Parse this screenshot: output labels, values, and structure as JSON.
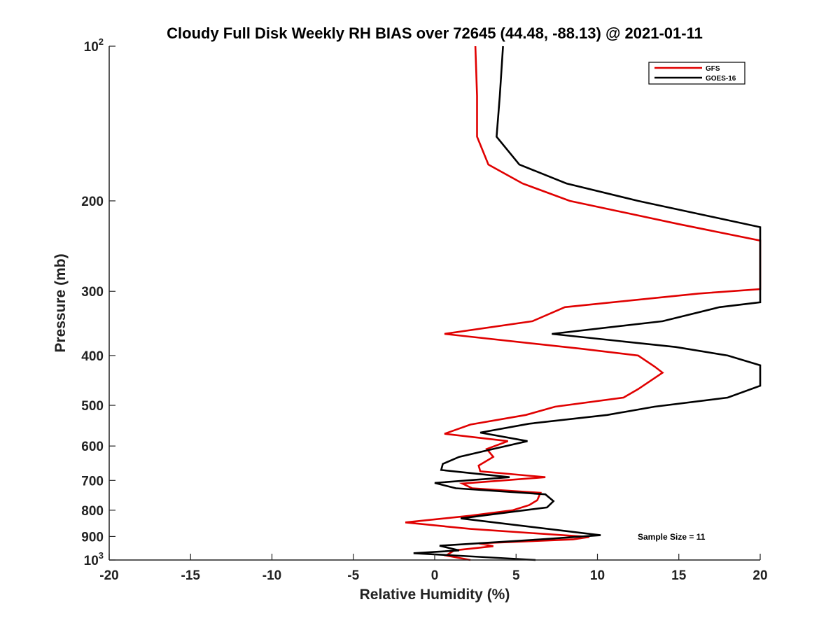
{
  "chart_data": {
    "type": "line",
    "title": "Cloudy Full Disk Weekly RH BIAS over 72645 (44.48, -88.13) @ 2021-01-11",
    "xlabel": "Relative Humidity (%)",
    "ylabel": "Pressure (mb)",
    "xlim": [
      -20,
      20
    ],
    "ylim": [
      100,
      1000
    ],
    "y_scale": "log",
    "y_reversed": true,
    "x_ticks": [
      -20,
      -15,
      -10,
      -5,
      0,
      5,
      10,
      15,
      20
    ],
    "y_ticks": [
      {
        "value": 100,
        "base": "10",
        "exp": "2"
      },
      {
        "value": 200,
        "label": "200"
      },
      {
        "value": 300,
        "label": "300"
      },
      {
        "value": 400,
        "label": "400"
      },
      {
        "value": 500,
        "label": "500"
      },
      {
        "value": 600,
        "label": "600"
      },
      {
        "value": 700,
        "label": "700"
      },
      {
        "value": 800,
        "label": "800"
      },
      {
        "value": 900,
        "label": "900"
      },
      {
        "value": 1000,
        "base": "10",
        "exp": "3"
      }
    ],
    "legend_position": "top-right",
    "annotation": "Sample Size = 11",
    "series": [
      {
        "name": "GFS",
        "color": "#e00000",
        "points": [
          {
            "x": 2.5,
            "y": 100
          },
          {
            "x": 2.6,
            "y": 125
          },
          {
            "x": 2.6,
            "y": 150
          },
          {
            "x": 3.3,
            "y": 170
          },
          {
            "x": 5.4,
            "y": 185
          },
          {
            "x": 8.3,
            "y": 200
          },
          {
            "x": 15.0,
            "y": 222
          },
          {
            "x": 20.0,
            "y": 239
          },
          {
            "x": 20.0,
            "y": 297
          },
          {
            "x": 16.2,
            "y": 303
          },
          {
            "x": 8.0,
            "y": 322
          },
          {
            "x": 6.0,
            "y": 343
          },
          {
            "x": 0.6,
            "y": 363
          },
          {
            "x": 9.0,
            "y": 388
          },
          {
            "x": 12.5,
            "y": 400
          },
          {
            "x": 13.5,
            "y": 420
          },
          {
            "x": 14.0,
            "y": 432
          },
          {
            "x": 12.5,
            "y": 465
          },
          {
            "x": 11.6,
            "y": 483
          },
          {
            "x": 7.4,
            "y": 503
          },
          {
            "x": 5.6,
            "y": 522
          },
          {
            "x": 2.2,
            "y": 545
          },
          {
            "x": 0.6,
            "y": 568
          },
          {
            "x": 4.5,
            "y": 587
          },
          {
            "x": 3.2,
            "y": 608
          },
          {
            "x": 3.6,
            "y": 630
          },
          {
            "x": 2.7,
            "y": 655
          },
          {
            "x": 2.8,
            "y": 672
          },
          {
            "x": 6.8,
            "y": 690
          },
          {
            "x": 1.7,
            "y": 710
          },
          {
            "x": 2.3,
            "y": 725
          },
          {
            "x": 6.5,
            "y": 740
          },
          {
            "x": 6.3,
            "y": 765
          },
          {
            "x": 5.8,
            "y": 782
          },
          {
            "x": 4.8,
            "y": 800
          },
          {
            "x": 2.2,
            "y": 820
          },
          {
            "x": -1.8,
            "y": 845
          },
          {
            "x": 2.2,
            "y": 870
          },
          {
            "x": 9.5,
            "y": 902
          },
          {
            "x": 8.5,
            "y": 912
          },
          {
            "x": 2.7,
            "y": 928
          },
          {
            "x": 3.6,
            "y": 940
          },
          {
            "x": 1.2,
            "y": 958
          },
          {
            "x": 0.7,
            "y": 980
          },
          {
            "x": 2.2,
            "y": 1000
          }
        ]
      },
      {
        "name": "GOES-16",
        "color": "#000000",
        "points": [
          {
            "x": 4.2,
            "y": 100
          },
          {
            "x": 4.0,
            "y": 125
          },
          {
            "x": 3.8,
            "y": 150
          },
          {
            "x": 5.2,
            "y": 170
          },
          {
            "x": 8.1,
            "y": 185
          },
          {
            "x": 12.5,
            "y": 200
          },
          {
            "x": 20.0,
            "y": 225
          },
          {
            "x": 20.0,
            "y": 315
          },
          {
            "x": 17.5,
            "y": 322
          },
          {
            "x": 14.0,
            "y": 343
          },
          {
            "x": 7.2,
            "y": 363
          },
          {
            "x": 14.8,
            "y": 385
          },
          {
            "x": 18.0,
            "y": 400
          },
          {
            "x": 20.0,
            "y": 418
          },
          {
            "x": 20.0,
            "y": 458
          },
          {
            "x": 18.0,
            "y": 483
          },
          {
            "x": 13.5,
            "y": 503
          },
          {
            "x": 10.6,
            "y": 522
          },
          {
            "x": 5.8,
            "y": 543
          },
          {
            "x": 2.8,
            "y": 565
          },
          {
            "x": 5.7,
            "y": 587
          },
          {
            "x": 3.6,
            "y": 608
          },
          {
            "x": 1.5,
            "y": 630
          },
          {
            "x": 0.5,
            "y": 650
          },
          {
            "x": 0.4,
            "y": 668
          },
          {
            "x": 4.6,
            "y": 690
          },
          {
            "x": 0.0,
            "y": 708
          },
          {
            "x": 1.3,
            "y": 725
          },
          {
            "x": 6.8,
            "y": 745
          },
          {
            "x": 7.3,
            "y": 768
          },
          {
            "x": 6.9,
            "y": 790
          },
          {
            "x": 1.6,
            "y": 830
          },
          {
            "x": 10.2,
            "y": 895
          },
          {
            "x": 6.5,
            "y": 912
          },
          {
            "x": 0.3,
            "y": 938
          },
          {
            "x": 1.5,
            "y": 958
          },
          {
            "x": -1.3,
            "y": 970
          },
          {
            "x": 6.2,
            "y": 1000
          }
        ]
      }
    ]
  }
}
